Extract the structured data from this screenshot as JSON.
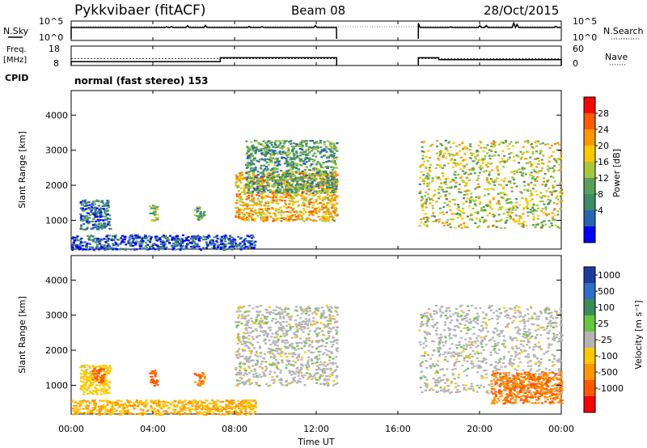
{
  "header": {
    "station": "Pykkvibaer (fitACF)",
    "beam": "Beam 08",
    "date": "28/Oct/2015"
  },
  "panels": {
    "nsky_label": "N.Sky",
    "nsky_ticks": [
      "10^5",
      "10^0"
    ],
    "nsearch_label": "N.Search",
    "nsearch_ticks": [
      "10^5",
      "10^0"
    ],
    "freq_label": "Freq.",
    "freq_unit": "[MHz]",
    "freq_ticks": [
      "18",
      "8"
    ],
    "nave_label": "Nave",
    "nave_ticks": [
      "60",
      "0"
    ],
    "cpid_label": "CPID",
    "cpid_text": "normal (fast stereo) 153"
  },
  "power_panel": {
    "ylabel": "Slant Range [km]",
    "yticks": [
      "4000",
      "3000",
      "2000",
      "1000"
    ],
    "cbar_label": "Power [dB]",
    "cbar_ticks": [
      "28",
      "24",
      "20",
      "16",
      "12",
      "8",
      "4"
    ],
    "cbar_colors": [
      "#ff0000",
      "#ff5a00",
      "#ff9600",
      "#ffc800",
      "#a5c83c",
      "#5aa05a",
      "#3c8c64",
      "#2864b4",
      "#0000ff"
    ]
  },
  "velocity_panel": {
    "ylabel": "Slant Range [km]",
    "yticks": [
      "4000",
      "3000",
      "2000",
      "1000"
    ],
    "cbar_label": "Velocity [m s⁻¹]",
    "cbar_ticks": [
      "1000",
      "500",
      "100",
      "25",
      "-25",
      "-100",
      "-500",
      "-1000"
    ],
    "cbar_colors": [
      "#1e3ca0",
      "#2c6ec8",
      "#3c8c5a",
      "#64c83c",
      "#b4b4b4",
      "#ffc800",
      "#ff9600",
      "#ff5a00",
      "#ff0000"
    ]
  },
  "x_axis": {
    "xlabel": "Time UT",
    "xticks": [
      "00:00",
      "04:00",
      "08:00",
      "12:00",
      "16:00",
      "20:00",
      "00:00"
    ]
  },
  "chart_data": {
    "type": "heatmap",
    "title": "Pykkvibaer (fitACF)",
    "subtitle": "Beam 08  28/Oct/2015",
    "xlabel": "Time UT",
    "xlim": [
      0,
      24
    ],
    "ylabel": "Slant Range [km]",
    "ylim": [
      180,
      4700
    ],
    "data_gap_hours": [
      13.0,
      17.0
    ],
    "nsky_ylim": [
      0,
      5
    ],
    "freq_mhz": [
      {
        "start": 0.0,
        "end": 7.3,
        "value": 10
      },
      {
        "start": 7.3,
        "end": 13.0,
        "value": 12
      },
      {
        "start": 17.0,
        "end": 18.0,
        "value": 12
      },
      {
        "start": 18.0,
        "end": 24.0,
        "value": 11
      }
    ],
    "power_db_range": [
      2,
      32
    ],
    "velocity_range": [
      -1000,
      1000
    ],
    "power_echo_regions": [
      {
        "t_start": 0.4,
        "t_end": 1.9,
        "r_min": 750,
        "r_max": 1600,
        "power_db": 8
      },
      {
        "t_start": 3.8,
        "t_end": 4.2,
        "r_min": 1000,
        "r_max": 1450,
        "power_db": 14
      },
      {
        "t_start": 6.0,
        "t_end": 6.5,
        "r_min": 1000,
        "r_max": 1400,
        "power_db": 12
      },
      {
        "t_start": 8.0,
        "t_end": 13.0,
        "r_min": 1000,
        "r_max": 2400,
        "power_db": 22
      },
      {
        "t_start": 8.5,
        "t_end": 13.0,
        "r_min": 1800,
        "r_max": 3300,
        "power_db": 12
      },
      {
        "t_start": 17.0,
        "t_end": 24.0,
        "r_min": 800,
        "r_max": 3300,
        "power_db": 18
      },
      {
        "t_start": 0.0,
        "t_end": 9.0,
        "r_min": 180,
        "r_max": 600,
        "power_db": 6
      }
    ],
    "velocity_echo_regions": [
      {
        "t_start": 0.4,
        "t_end": 1.9,
        "r_min": 750,
        "r_max": 1600,
        "velocity": -50
      },
      {
        "t_start": 1.0,
        "t_end": 1.6,
        "r_min": 1100,
        "r_max": 1500,
        "velocity": -700
      },
      {
        "t_start": 3.8,
        "t_end": 4.2,
        "r_min": 1000,
        "r_max": 1450,
        "velocity": -700
      },
      {
        "t_start": 6.0,
        "t_end": 6.5,
        "r_min": 1000,
        "r_max": 1400,
        "velocity": -500
      },
      {
        "t_start": 8.0,
        "t_end": 13.0,
        "r_min": 1000,
        "r_max": 3300,
        "velocity": 0
      },
      {
        "t_start": 17.0,
        "t_end": 24.0,
        "r_min": 800,
        "r_max": 3300,
        "velocity": 0
      },
      {
        "t_start": 20.5,
        "t_end": 24.0,
        "r_min": 500,
        "r_max": 1400,
        "velocity": -500
      },
      {
        "t_start": 0.0,
        "t_end": 9.0,
        "r_min": 180,
        "r_max": 600,
        "velocity": -100
      }
    ]
  }
}
